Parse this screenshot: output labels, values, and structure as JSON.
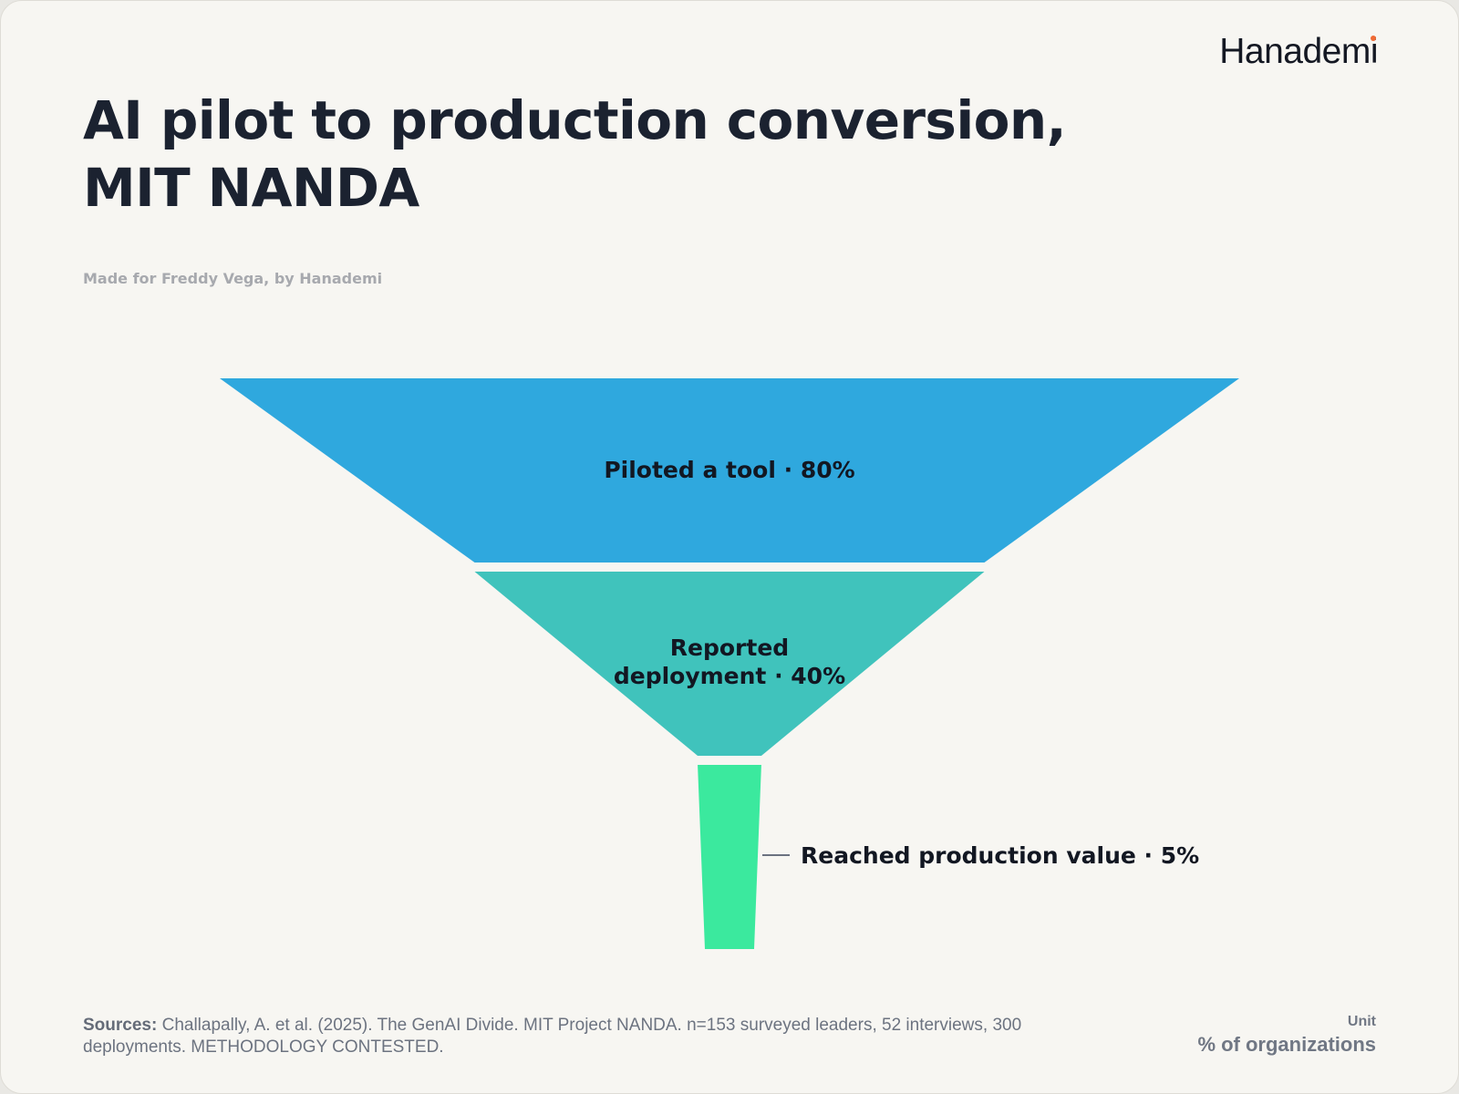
{
  "brand": {
    "name": "Hanademi"
  },
  "header": {
    "title": "AI pilot to production conversion, MIT NANDA",
    "subtitle": "Made for Freddy Vega, by Hanademi"
  },
  "footer": {
    "sources_label": "Sources:",
    "sources_text": "Challapally, A. et al. (2025). The GenAI Divide. MIT Project NANDA. n=153 surveyed leaders, 52 interviews, 300 deployments. METHODOLOGY CONTESTED.",
    "unit_label": "Unit",
    "unit_value": "% of organizations"
  },
  "chart_data": {
    "type": "funnel",
    "title": "AI pilot to production conversion, MIT NANDA",
    "unit": "% of organizations",
    "stages": [
      {
        "label": "Piloted a tool · 80%",
        "name": "Piloted a tool",
        "value": 80,
        "color": "#2fa8de"
      },
      {
        "label": "Reported deployment · 40%",
        "name": "Reported deployment",
        "value": 40,
        "color": "#40c3bc"
      },
      {
        "label": "Reached production value · 5%",
        "name": "Reached production value",
        "value": 5,
        "color": "#3be99e"
      }
    ]
  }
}
